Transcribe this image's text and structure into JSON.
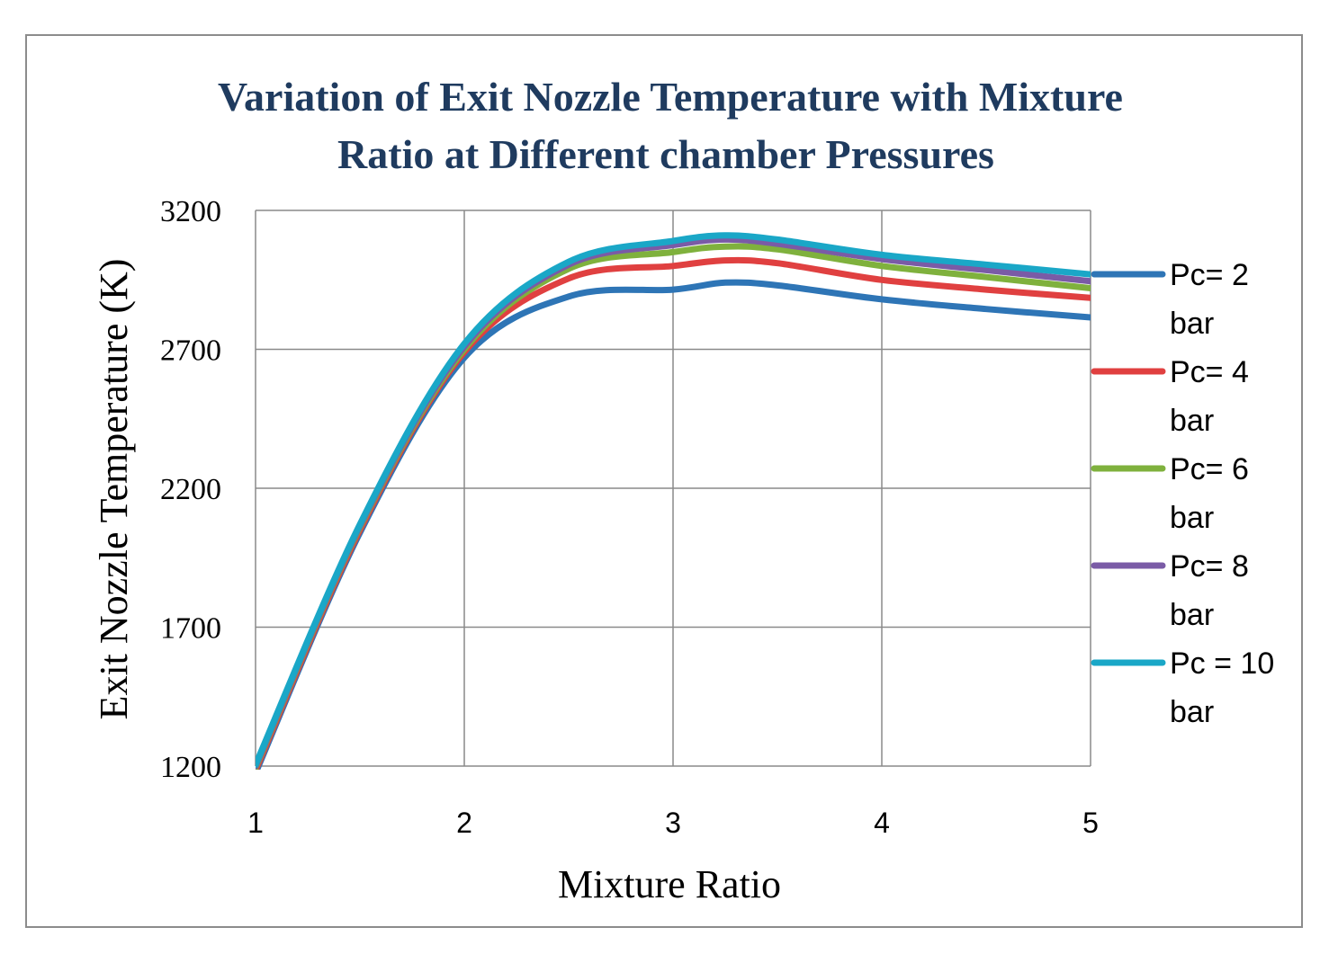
{
  "chart_data": {
    "type": "line",
    "title_lines": [
      "Variation of Exit Nozzle Temperature with Mixture",
      "Ratio at Different chamber Pressures"
    ],
    "xlabel": "Mixture Ratio",
    "ylabel": "Exit Nozzle Temperature (K)",
    "xlim": [
      1,
      5
    ],
    "ylim": [
      1200,
      3200
    ],
    "xticks": [
      1,
      2,
      3,
      4,
      5
    ],
    "yticks": [
      1200,
      1700,
      2200,
      2700,
      3200
    ],
    "grid": true,
    "legend_position": "right",
    "x": [
      1,
      1.5,
      2,
      2.5,
      3,
      3.25,
      3.5,
      4,
      4.5,
      5
    ],
    "series": [
      {
        "name": "Pc= 2",
        "name_line2": "bar",
        "color": "#2e75b6",
        "values": [
          1175,
          2040,
          2670,
          2890,
          2915,
          2940,
          2930,
          2880,
          2845,
          2815
        ]
      },
      {
        "name": "Pc= 4",
        "name_line2": "bar",
        "color": "#e04040",
        "values": [
          1185,
          2050,
          2690,
          2955,
          3000,
          3020,
          3010,
          2950,
          2915,
          2885
        ]
      },
      {
        "name": "Pc= 6",
        "name_line2": "bar",
        "color": "#7fb13d",
        "values": [
          1195,
          2060,
          2700,
          2990,
          3050,
          3070,
          3060,
          3000,
          2960,
          2920
        ]
      },
      {
        "name": "Pc= 8",
        "name_line2": "bar",
        "color": "#7a5ba6",
        "values": [
          1200,
          2065,
          2710,
          3005,
          3075,
          3095,
          3080,
          3025,
          2985,
          2945
        ]
      },
      {
        "name": "Pc = 10",
        "name_line2": "bar",
        "color": "#1aa7c7",
        "values": [
          1205,
          2070,
          2720,
          3015,
          3090,
          3110,
          3095,
          3040,
          3005,
          2970
        ]
      }
    ]
  }
}
